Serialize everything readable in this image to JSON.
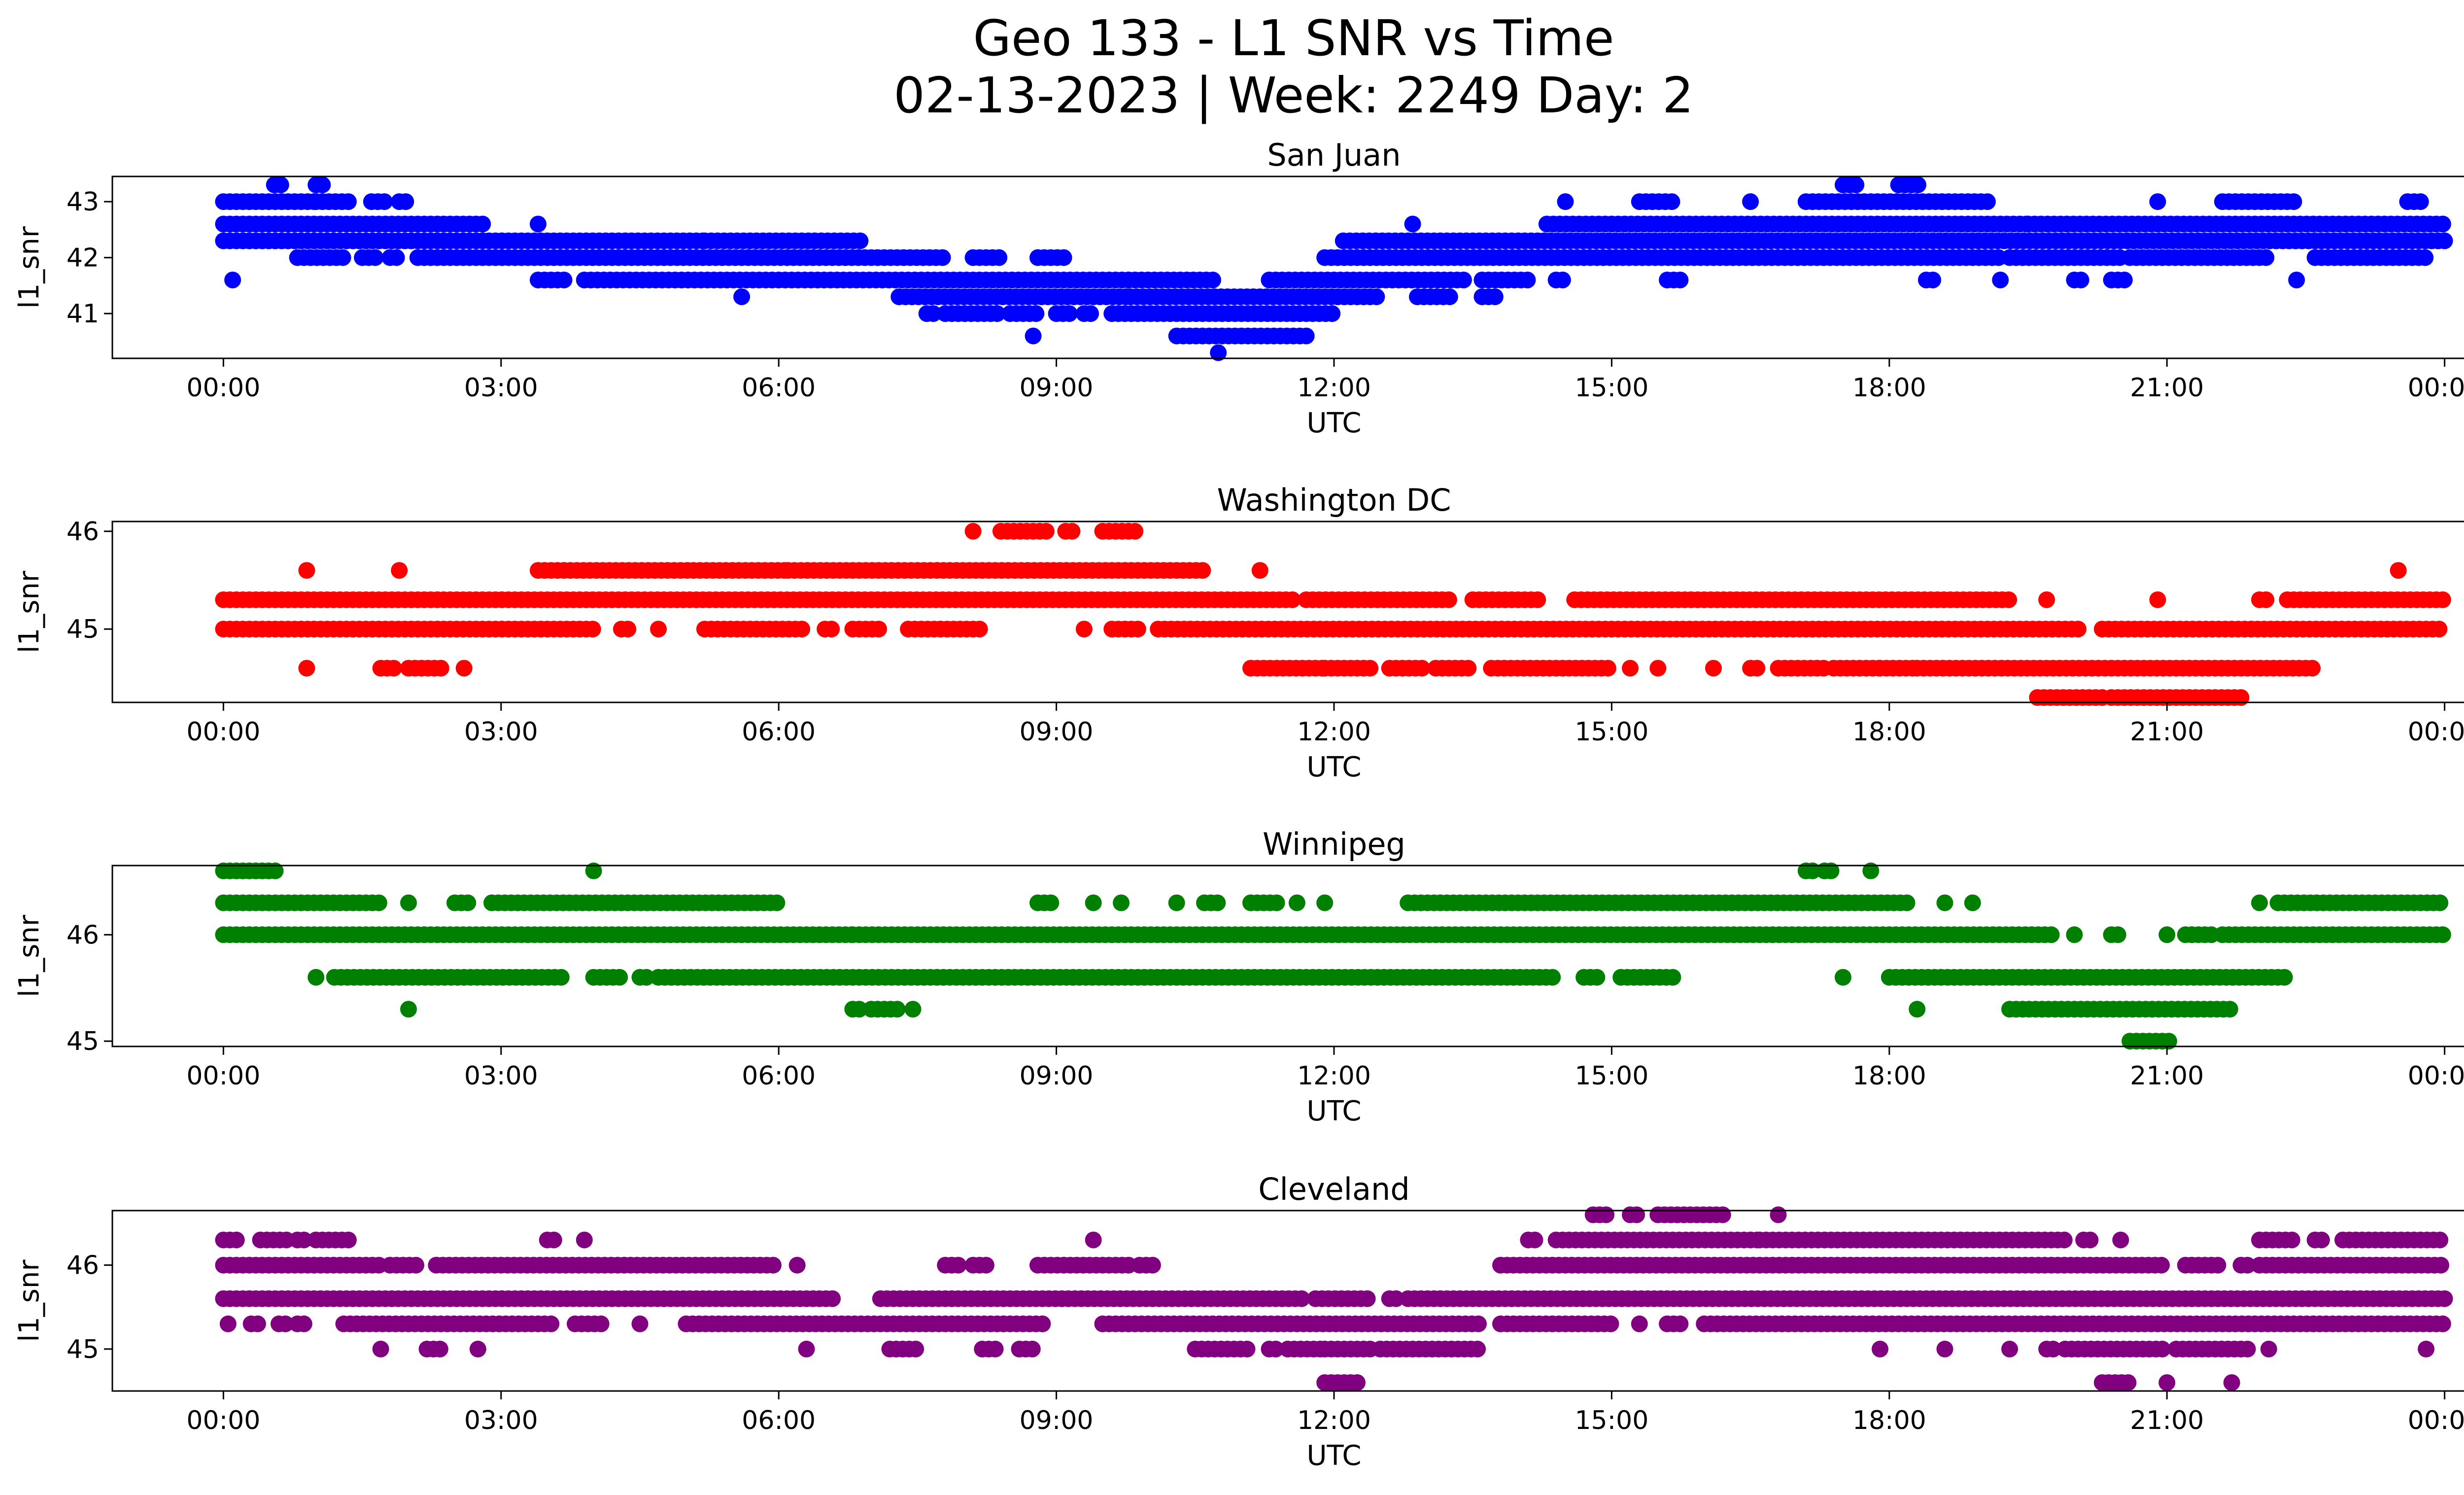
{
  "figure": {
    "title_line1": "Geo 133 - L1 SNR vs Time",
    "title_line2": "02-13-2023 | Week: 2249 Day: 2"
  },
  "chart_data": [
    {
      "type": "scatter",
      "title": "San Juan",
      "xlabel": "UTC",
      "ylabel": "l1_snr",
      "color": "#0000ff",
      "xlim_hours": [
        -1.2,
        25.2
      ],
      "ylim": [
        40.2,
        43.45
      ],
      "xticks": [
        "00:00",
        "03:00",
        "06:00",
        "09:00",
        "12:00",
        "15:00",
        "18:00",
        "21:00",
        "00:00"
      ],
      "yticks": [
        41,
        42,
        43
      ],
      "bands": [
        {
          "snr": 43.3,
          "ranges": [
            [
              0.55,
              0.65
            ],
            [
              1.0,
              1.1
            ],
            [
              17.5,
              17.7
            ],
            [
              18.1,
              18.35
            ]
          ]
        },
        {
          "snr": 43.0,
          "ranges": [
            [
              0.0,
              1.0
            ],
            [
              1.0,
              1.35
            ],
            [
              1.6,
              1.8
            ],
            [
              1.9,
              2.0
            ],
            [
              14.5,
              14.55
            ],
            [
              15.3,
              15.7
            ],
            [
              16.5,
              16.55
            ],
            [
              17.1,
              19.1
            ],
            [
              20.9,
              20.95
            ],
            [
              21.6,
              22.4
            ],
            [
              23.6,
              23.75
            ]
          ]
        },
        {
          "snr": 42.6,
          "ranges": [
            [
              0.0,
              2.8
            ],
            [
              3.4,
              3.45
            ],
            [
              12.85,
              12.9
            ],
            [
              14.3,
              19.5
            ],
            [
              19.5,
              24.0
            ]
          ]
        },
        {
          "snr": 42.3,
          "ranges": [
            [
              0.0,
              5.2
            ],
            [
              5.2,
              6.9
            ],
            [
              12.1,
              24.0
            ]
          ]
        },
        {
          "snr": 42.0,
          "ranges": [
            [
              0.8,
              1.3
            ],
            [
              1.5,
              1.7
            ],
            [
              1.8,
              1.9
            ],
            [
              2.1,
              7.8
            ],
            [
              8.1,
              8.4
            ],
            [
              8.8,
              9.1
            ],
            [
              11.9,
              19.2
            ],
            [
              19.3,
              20.5
            ],
            [
              20.6,
              22.1
            ],
            [
              22.6,
              23.8
            ]
          ]
        },
        {
          "snr": 41.6,
          "ranges": [
            [
              0.1,
              0.15
            ],
            [
              3.4,
              3.7
            ],
            [
              3.9,
              10.7
            ],
            [
              11.3,
              13.4
            ],
            [
              13.6,
              14.1
            ],
            [
              14.4,
              14.5
            ],
            [
              15.6,
              15.75
            ],
            [
              18.4,
              18.5
            ],
            [
              19.2,
              19.25
            ],
            [
              20.0,
              20.1
            ],
            [
              20.4,
              20.55
            ],
            [
              22.4,
              22.45
            ]
          ]
        },
        {
          "snr": 41.3,
          "ranges": [
            [
              5.6,
              5.65
            ],
            [
              7.3,
              9.8
            ],
            [
              9.8,
              12.5
            ],
            [
              12.9,
              13.3
            ],
            [
              13.6,
              13.75
            ]
          ]
        },
        {
          "snr": 41.0,
          "ranges": [
            [
              7.6,
              7.7
            ],
            [
              7.8,
              8.4
            ],
            [
              8.5,
              8.8
            ],
            [
              9.0,
              9.2
            ],
            [
              9.3,
              9.4
            ],
            [
              9.6,
              12.0
            ]
          ]
        },
        {
          "snr": 40.6,
          "ranges": [
            [
              8.75,
              8.8
            ],
            [
              10.3,
              11.7
            ]
          ]
        },
        {
          "snr": 40.3,
          "ranges": [
            [
              10.75,
              10.8
            ]
          ]
        }
      ]
    },
    {
      "type": "scatter",
      "title": "Washington DC",
      "xlabel": "UTC",
      "ylabel": "l1_snr",
      "color": "#ff0000",
      "xlim_hours": [
        -1.2,
        25.2
      ],
      "ylim": [
        44.25,
        46.1
      ],
      "xticks": [
        "00:00",
        "03:00",
        "06:00",
        "09:00",
        "12:00",
        "15:00",
        "18:00",
        "21:00",
        "00:00"
      ],
      "yticks": [
        45,
        46
      ],
      "bands": [
        {
          "snr": 46.0,
          "ranges": [
            [
              8.1,
              8.15
            ],
            [
              8.4,
              8.9
            ],
            [
              9.1,
              9.2
            ],
            [
              9.5,
              9.9
            ]
          ]
        },
        {
          "snr": 45.6,
          "ranges": [
            [
              0.9,
              0.95
            ],
            [
              1.9,
              1.95
            ],
            [
              3.4,
              6.1
            ],
            [
              6.1,
              10.6
            ],
            [
              11.2,
              11.25
            ],
            [
              23.5,
              23.55
            ]
          ]
        },
        {
          "snr": 45.3,
          "ranges": [
            [
              0.0,
              11.6
            ],
            [
              11.7,
              13.3
            ],
            [
              13.5,
              14.2
            ],
            [
              14.6,
              19.3
            ],
            [
              19.7,
              19.75
            ],
            [
              20.9,
              20.95
            ],
            [
              22.0,
              22.1
            ],
            [
              22.3,
              24.0
            ]
          ]
        },
        {
          "snr": 45.0,
          "ranges": [
            [
              0.0,
              4.0
            ],
            [
              4.3,
              4.4
            ],
            [
              4.7,
              4.75
            ],
            [
              5.2,
              6.3
            ],
            [
              6.5,
              6.6
            ],
            [
              6.8,
              7.1
            ],
            [
              7.4,
              8.2
            ],
            [
              9.3,
              9.35
            ],
            [
              9.6,
              9.9
            ],
            [
              10.1,
              20.1
            ],
            [
              20.3,
              24.0
            ]
          ]
        },
        {
          "snr": 44.6,
          "ranges": [
            [
              0.9,
              0.95
            ],
            [
              1.7,
              1.9
            ],
            [
              2.0,
              2.4
            ],
            [
              2.6,
              2.65
            ],
            [
              11.1,
              11.9
            ],
            [
              11.9,
              12.4
            ],
            [
              12.6,
              13.0
            ],
            [
              13.1,
              13.5
            ],
            [
              13.7,
              15.0
            ],
            [
              15.2,
              15.25
            ],
            [
              15.5,
              15.55
            ],
            [
              16.1,
              16.15
            ],
            [
              16.5,
              16.6
            ],
            [
              16.8,
              17.3
            ],
            [
              17.4,
              17.9
            ],
            [
              17.9,
              18.3
            ],
            [
              18.3,
              22.6
            ]
          ]
        },
        {
          "snr": 44.3,
          "ranges": [
            [
              19.6,
              20.3
            ],
            [
              20.4,
              21.8
            ]
          ]
        }
      ]
    },
    {
      "type": "scatter",
      "title": "Winnipeg",
      "xlabel": "UTC",
      "ylabel": "l1_snr",
      "color": "#008000",
      "xlim_hours": [
        -1.2,
        25.2
      ],
      "ylim": [
        44.95,
        46.65
      ],
      "xticks": [
        "00:00",
        "03:00",
        "06:00",
        "09:00",
        "12:00",
        "15:00",
        "18:00",
        "21:00",
        "00:00"
      ],
      "yticks": [
        45,
        46
      ],
      "bands": [
        {
          "snr": 46.6,
          "ranges": [
            [
              0.0,
              0.6
            ],
            [
              4.0,
              4.05
            ],
            [
              17.1,
              17.2
            ],
            [
              17.3,
              17.4
            ],
            [
              17.8,
              17.85
            ]
          ]
        },
        {
          "snr": 46.3,
          "ranges": [
            [
              0.0,
              1.7
            ],
            [
              2.0,
              2.05
            ],
            [
              2.5,
              2.7
            ],
            [
              2.9,
              6.0
            ],
            [
              8.8,
              8.95
            ],
            [
              9.4,
              9.45
            ],
            [
              9.7,
              9.75
            ],
            [
              10.3,
              10.35
            ],
            [
              10.6,
              10.8
            ],
            [
              11.1,
              11.4
            ],
            [
              11.6,
              11.65
            ],
            [
              11.9,
              11.95
            ],
            [
              12.8,
              18.2
            ],
            [
              18.6,
              18.65
            ],
            [
              18.9,
              18.95
            ],
            [
              22.0,
              22.05
            ],
            [
              22.2,
              24.0
            ]
          ]
        },
        {
          "snr": 46.0,
          "ranges": [
            [
              0.0,
              6.8
            ],
            [
              6.8,
              19.8
            ],
            [
              20.0,
              20.05
            ],
            [
              20.4,
              20.5
            ],
            [
              21.0,
              21.05
            ],
            [
              21.2,
              21.5
            ],
            [
              21.6,
              24.0
            ]
          ]
        },
        {
          "snr": 45.6,
          "ranges": [
            [
              1.0,
              1.05
            ],
            [
              1.2,
              3.7
            ],
            [
              4.0,
              4.3
            ],
            [
              4.5,
              4.6
            ],
            [
              4.7,
              14.4
            ],
            [
              14.7,
              14.9
            ],
            [
              15.1,
              15.7
            ],
            [
              17.5,
              17.55
            ],
            [
              18.0,
              22.3
            ]
          ]
        },
        {
          "snr": 45.3,
          "ranges": [
            [
              2.0,
              2.05
            ],
            [
              6.8,
              6.9
            ],
            [
              7.0,
              7.3
            ],
            [
              7.45,
              7.5
            ],
            [
              18.3,
              18.35
            ],
            [
              19.3,
              21.7
            ]
          ]
        },
        {
          "snr": 45.0,
          "ranges": [
            [
              20.6,
              21.05
            ]
          ]
        }
      ]
    },
    {
      "type": "scatter",
      "title": "Cleveland",
      "xlabel": "UTC",
      "ylabel": "l1_snr",
      "color": "#800080",
      "xlim_hours": [
        -1.2,
        25.2
      ],
      "ylim": [
        44.5,
        46.65
      ],
      "xticks": [
        "00:00",
        "03:00",
        "06:00",
        "09:00",
        "12:00",
        "15:00",
        "18:00",
        "21:00",
        "00:00"
      ],
      "yticks": [
        45,
        46
      ],
      "bands": [
        {
          "snr": 46.6,
          "ranges": [
            [
              14.8,
              15.0
            ],
            [
              15.2,
              15.3
            ],
            [
              15.5,
              16.2
            ],
            [
              16.8,
              16.85
            ]
          ]
        },
        {
          "snr": 46.3,
          "ranges": [
            [
              0.0,
              0.2
            ],
            [
              0.4,
              0.7
            ],
            [
              0.8,
              0.9
            ],
            [
              1.0,
              1.4
            ],
            [
              3.5,
              3.6
            ],
            [
              3.9,
              3.95
            ],
            [
              9.4,
              9.45
            ],
            [
              14.1,
              14.2
            ],
            [
              14.4,
              16.6
            ],
            [
              16.6,
              19.9
            ],
            [
              20.1,
              20.2
            ],
            [
              20.5,
              20.55
            ],
            [
              22.0,
              22.4
            ],
            [
              22.6,
              22.7
            ],
            [
              22.9,
              24.0
            ]
          ]
        },
        {
          "snr": 46.0,
          "ranges": [
            [
              0.0,
              1.7
            ],
            [
              1.8,
              2.1
            ],
            [
              2.3,
              6.0
            ],
            [
              6.2,
              6.25
            ],
            [
              7.8,
              8.0
            ],
            [
              8.1,
              8.3
            ],
            [
              8.8,
              9.8
            ],
            [
              9.9,
              10.1
            ],
            [
              13.8,
              21.0
            ],
            [
              21.2,
              21.6
            ],
            [
              21.8,
              21.9
            ],
            [
              22.0,
              24.0
            ]
          ]
        },
        {
          "snr": 45.6,
          "ranges": [
            [
              0.0,
              6.6
            ],
            [
              7.1,
              11.7
            ],
            [
              11.8,
              12.4
            ],
            [
              12.6,
              12.7
            ],
            [
              12.8,
              24.0
            ]
          ]
        },
        {
          "snr": 45.3,
          "ranges": [
            [
              0.05,
              0.1
            ],
            [
              0.3,
              0.4
            ],
            [
              0.6,
              0.7
            ],
            [
              0.8,
              0.9
            ],
            [
              1.3,
              3.6
            ],
            [
              3.8,
              4.1
            ],
            [
              4.5,
              4.55
            ],
            [
              5.0,
              8.9
            ],
            [
              9.5,
              13.6
            ],
            [
              13.8,
              15.0
            ],
            [
              15.3,
              15.35
            ],
            [
              15.6,
              15.8
            ],
            [
              16.0,
              24.0
            ]
          ]
        },
        {
          "snr": 45.0,
          "ranges": [
            [
              1.7,
              1.75
            ],
            [
              2.2,
              2.35
            ],
            [
              2.75,
              2.8
            ],
            [
              6.3,
              6.35
            ],
            [
              7.2,
              7.5
            ],
            [
              8.2,
              8.4
            ],
            [
              8.6,
              8.8
            ],
            [
              10.5,
              11.1
            ],
            [
              11.3,
              11.4
            ],
            [
              11.5,
              11.9
            ],
            [
              11.9,
              12.4
            ],
            [
              12.5,
              13.6
            ],
            [
              17.9,
              17.95
            ],
            [
              18.6,
              18.65
            ],
            [
              19.3,
              19.35
            ],
            [
              19.7,
              19.8
            ],
            [
              19.9,
              21.0
            ],
            [
              21.1,
              21.9
            ],
            [
              22.1,
              22.15
            ],
            [
              23.8,
              23.85
            ]
          ]
        },
        {
          "snr": 44.6,
          "ranges": [
            [
              11.9,
              12.3
            ],
            [
              20.3,
              20.6
            ],
            [
              21.0,
              21.05
            ],
            [
              21.7,
              21.75
            ]
          ]
        }
      ]
    }
  ]
}
